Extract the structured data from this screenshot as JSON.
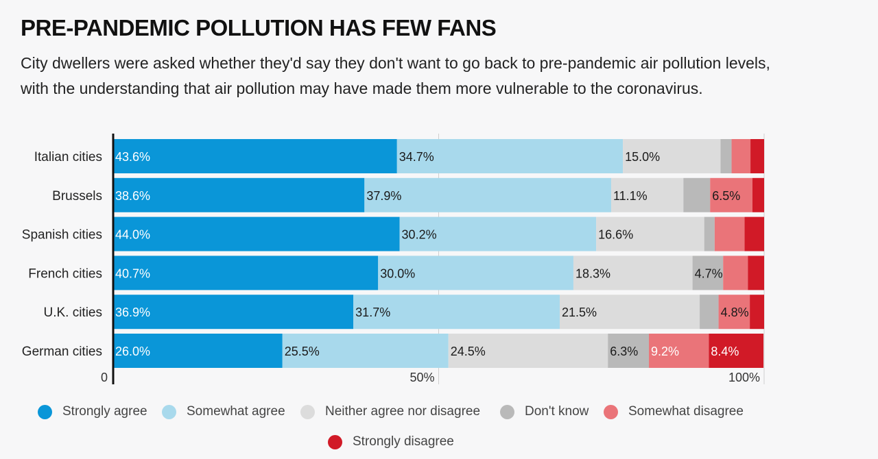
{
  "title": "PRE-PANDEMIC POLLUTION HAS FEW FANS",
  "subtitle": "City dwellers were asked whether they'd say they don't want to go back to pre-pandemic air pollution levels, with the understanding that air pollution may have made them more vulnerable to the coronavirus.",
  "chart_data": {
    "type": "bar",
    "orientation": "horizontal",
    "stacked": true,
    "categories": [
      "Italian cities",
      "Brussels",
      "Spanish cities",
      "French cities",
      "U.K. cities",
      "German cities"
    ],
    "series": [
      {
        "name": "Strongly agree",
        "color": "#0a96d8",
        "values": [
          43.6,
          38.6,
          44.0,
          40.7,
          36.9,
          26.0
        ],
        "labels": [
          "43.6%",
          "38.6%",
          "44.0%",
          "40.7%",
          "36.9%",
          "26.0%"
        ]
      },
      {
        "name": "Somewhat agree",
        "color": "#a8d9ec",
        "values": [
          34.7,
          37.9,
          30.2,
          30.0,
          31.7,
          25.5
        ],
        "labels": [
          "34.7%",
          "37.9%",
          "30.2%",
          "30.0%",
          "31.7%",
          "25.5%"
        ]
      },
      {
        "name": "Neither agree nor disagree",
        "color": "#dcdcdc",
        "values": [
          15.0,
          11.1,
          16.6,
          18.3,
          21.5,
          24.5
        ],
        "labels": [
          "15.0%",
          "11.1%",
          "16.6%",
          "18.3%",
          "21.5%",
          "24.5%"
        ]
      },
      {
        "name": "Don't know",
        "color": "#b9b9b9",
        "values": [
          1.7,
          4.1,
          1.6,
          4.7,
          2.9,
          6.3
        ],
        "labels": [
          "",
          "",
          "",
          "4.7%",
          "",
          "6.3%"
        ]
      },
      {
        "name": "Somewhat disagree",
        "color": "#ea7479",
        "values": [
          2.9,
          6.5,
          4.6,
          3.8,
          4.8,
          9.2
        ],
        "labels": [
          "",
          "6.5%",
          "",
          "",
          "4.8%",
          "9.2%"
        ]
      },
      {
        "name": "Strongly disagree",
        "color": "#d11a27",
        "values": [
          2.1,
          1.8,
          3.0,
          2.5,
          2.2,
          8.4
        ],
        "labels": [
          "",
          "",
          "",
          "",
          "",
          "8.4%"
        ]
      }
    ],
    "xlim": [
      0,
      100
    ],
    "xticks": [
      0,
      50,
      100
    ],
    "xtick_labels": [
      "0",
      "50%",
      "100%"
    ],
    "grid": true,
    "legend_position": "bottom"
  }
}
